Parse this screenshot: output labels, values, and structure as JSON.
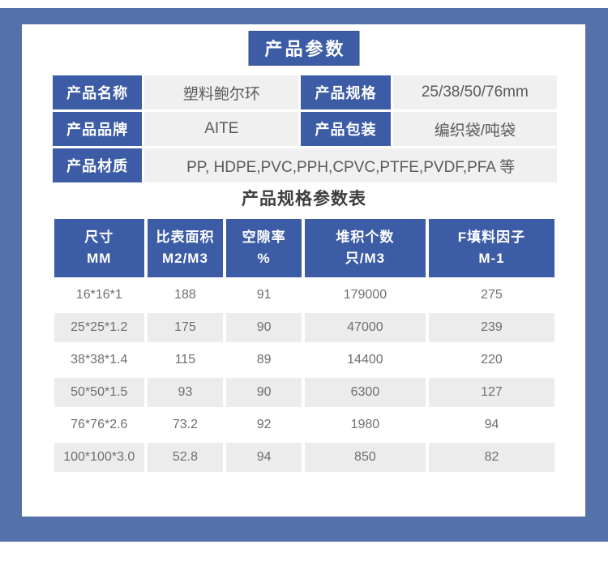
{
  "title": "产品参数",
  "info_table": {
    "rows": [
      {
        "cells": [
          {
            "label": "产品名称",
            "value": "塑料鲍尔环"
          },
          {
            "label": "产品规格",
            "value": "25/38/50/76mm"
          }
        ]
      },
      {
        "cells": [
          {
            "label": "产品品牌",
            "value": "AITE"
          },
          {
            "label": "产品包装",
            "value": "编织袋/吨袋"
          }
        ]
      },
      {
        "cells": [
          {
            "label": "产品材质",
            "value": "PP, HDPE,PVC,PPH,CPVC,PTFE,PVDF,PFA 等"
          }
        ]
      }
    ]
  },
  "spec_table": {
    "title": "产品规格参数表",
    "columns": [
      {
        "line1": "尺寸",
        "line2": "MM"
      },
      {
        "line1": "比表面积",
        "line2": "M2/M3"
      },
      {
        "line1": "空隙率",
        "line2": "%"
      },
      {
        "line1": "堆积个数",
        "line2": "只/M3"
      },
      {
        "line1": "F填料因子",
        "line2": "M-1"
      }
    ],
    "rows": [
      [
        "16*16*1",
        "188",
        "91",
        "179000",
        "275"
      ],
      [
        "25*25*1.2",
        "175",
        "90",
        "47000",
        "239"
      ],
      [
        "38*38*1.4",
        "115",
        "89",
        "14400",
        "220"
      ],
      [
        "50*50*1.5",
        "93",
        "90",
        "6300",
        "127"
      ],
      [
        "76*76*2.6",
        "73.2",
        "92",
        "1980",
        "94"
      ],
      [
        "100*100*3.0",
        "52.8",
        "94",
        "850",
        "82"
      ]
    ]
  },
  "colors": {
    "frame_blue": "#5571a9",
    "header_blue": "#3d5ca6",
    "cell_gray": "#f0f0f0",
    "row_gray": "#ececec",
    "value_text": "#5a5b5e",
    "data_text": "#6e6f71",
    "subtitle_text": "#3e3e40"
  }
}
